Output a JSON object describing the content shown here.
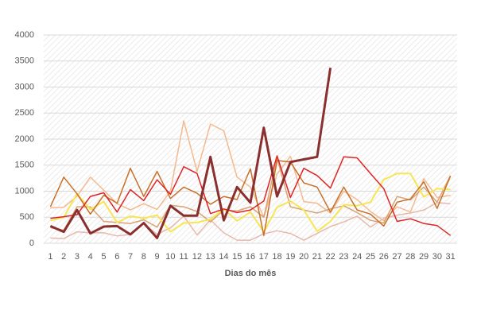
{
  "chart_data": {
    "type": "line",
    "x_label": "Dias do mês",
    "categories": [
      "1",
      "2",
      "3",
      "4",
      "5",
      "6",
      "7",
      "8",
      "9",
      "10",
      "11",
      "12",
      "13",
      "14",
      "15",
      "16",
      "17",
      "18",
      "19",
      "20",
      "21",
      "22",
      "23",
      "24",
      "25",
      "26",
      "27",
      "28",
      "29",
      "30",
      "31"
    ],
    "ylim": [
      0,
      4000
    ],
    "yticks": [
      0,
      500,
      1000,
      1500,
      2000,
      2500,
      3000,
      3500,
      4000
    ],
    "grid": true,
    "series": [
      {
        "color": "#f5b98e",
        "width": 1.5,
        "values": [
          680,
          690,
          900,
          1270,
          1020,
          760,
          640,
          760,
          650,
          1000,
          2350,
          1380,
          2290,
          2160,
          1270,
          1080,
          500,
          1330,
          1670,
          800,
          770,
          580,
          1000,
          840,
          610,
          430,
          700,
          600,
          1240,
          880,
          920
        ]
      },
      {
        "color": "#e8b8ac",
        "width": 1.5,
        "values": [
          100,
          90,
          220,
          200,
          200,
          140,
          170,
          380,
          170,
          300,
          520,
          160,
          450,
          200,
          60,
          60,
          180,
          240,
          190,
          60,
          190,
          320,
          410,
          520,
          310,
          480,
          540,
          580,
          640,
          780,
          760
        ]
      },
      {
        "color": "#dba273",
        "width": 1.5,
        "values": [
          300,
          250,
          700,
          700,
          420,
          400,
          380,
          450,
          310,
          730,
          700,
          610,
          410,
          640,
          620,
          700,
          500,
          1640,
          700,
          640,
          580,
          660,
          720,
          590,
          440,
          390,
          900,
          830,
          1080,
          790,
          1300
        ]
      },
      {
        "color": "#f7e652",
        "width": 2,
        "values": [
          430,
          500,
          950,
          650,
          800,
          400,
          520,
          480,
          540,
          220,
          390,
          400,
          460,
          660,
          430,
          600,
          220,
          690,
          810,
          640,
          230,
          420,
          740,
          720,
          790,
          1220,
          1340,
          1340,
          890,
          1050,
          1030
        ]
      },
      {
        "color": "#c8702a",
        "width": 1.5,
        "values": [
          700,
          1270,
          950,
          560,
          920,
          770,
          1440,
          900,
          1380,
          860,
          1080,
          960,
          750,
          900,
          840,
          1430,
          150,
          1590,
          1560,
          1160,
          1080,
          600,
          1080,
          640,
          560,
          330,
          790,
          850,
          1180,
          670,
          1290
        ]
      },
      {
        "color": "#e02424",
        "width": 1.5,
        "values": [
          480,
          510,
          550,
          900,
          970,
          600,
          1030,
          820,
          1220,
          940,
          1470,
          1340,
          570,
          660,
          590,
          640,
          810,
          1680,
          880,
          1440,
          1300,
          1060,
          1660,
          1640,
          1340,
          1050,
          420,
          470,
          380,
          340,
          150
        ]
      },
      {
        "color": "#8b2e2e",
        "width": 3,
        "values": [
          330,
          220,
          640,
          190,
          320,
          330,
          170,
          390,
          100,
          720,
          530,
          530,
          1660,
          440,
          1080,
          780,
          2220,
          900,
          1560,
          1610,
          1660,
          3370,
          null,
          null,
          null,
          null,
          null,
          null,
          null,
          null,
          null
        ]
      }
    ]
  }
}
